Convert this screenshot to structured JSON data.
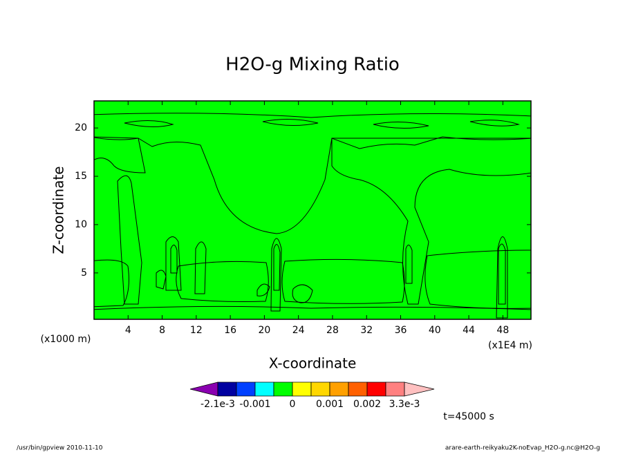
{
  "chart_data": {
    "type": "contour",
    "title": "H2O-g Mixing Ratio",
    "x_label": "X-coordinate",
    "y_label": "Z-coordinate",
    "x_unit": "(x1E4 m)",
    "y_unit": "(x1000 m)",
    "xlim": [
      0,
      51.3
    ],
    "ylim": [
      0.2,
      22.8
    ],
    "xticks": [
      4,
      8,
      12,
      16,
      20,
      24,
      28,
      32,
      36,
      40,
      44,
      48
    ],
    "yticks": [
      5,
      10,
      15,
      20
    ],
    "colorbar": {
      "colors": [
        "#8a00b0",
        "#0000a0",
        "#0040ff",
        "#00ffff",
        "#00ff00",
        "#ffff00",
        "#ffd700",
        "#ffa000",
        "#ff6000",
        "#ff0000",
        "#ff8080",
        "#ffc0c0"
      ],
      "ticks": [
        {
          "value": -0.0021,
          "label": "-2.1e-3"
        },
        -0.001,
        0,
        0.001,
        0.002,
        {
          "value": 0.0033,
          "label": "3.3e-3"
        }
      ]
    },
    "time_label": "t=45000 s",
    "footer_left": "/usr/bin/gpview  2010-11-10",
    "footer_right": "arare-earth-reikyaku2K-noEvap_H2O-g.nc@H2O-g"
  }
}
